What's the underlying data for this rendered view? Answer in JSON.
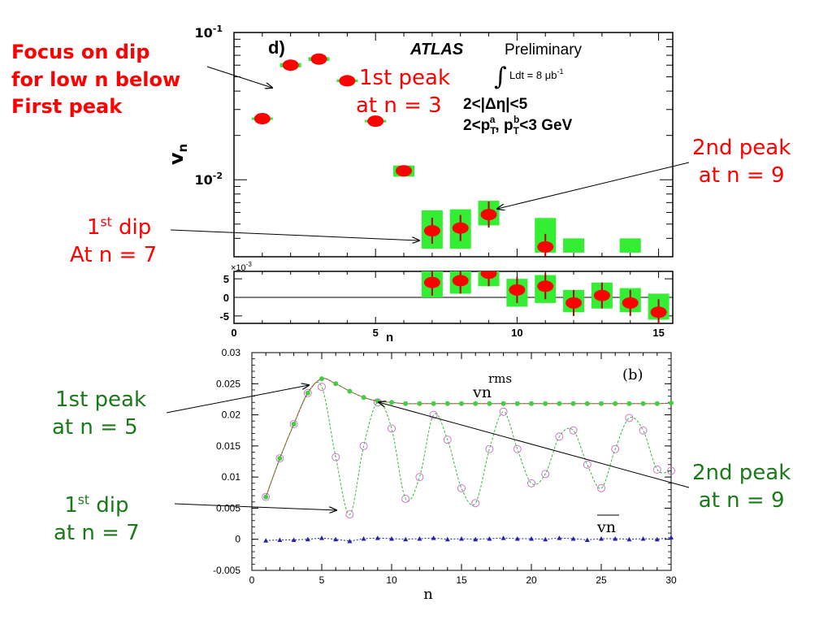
{
  "colors": {
    "atlas_marker": "#ff0000",
    "atlas_syst_box": "#33ee33",
    "annot_red": "#ff0000",
    "annot_green": "#1a7a1a",
    "rms_curve": "#b03030",
    "rms_points": "#44cc44",
    "vn_curve": "#33bb33",
    "vn_points": "#cc66cc",
    "vbar_points": "#2222aa"
  },
  "annotations": {
    "focus": [
      "Focus on dip",
      "for low n below",
      "First peak"
    ],
    "top_peak1": [
      "1st peak",
      "at  n = 3"
    ],
    "top_peak2": [
      "2nd peak",
      "at  n = 9"
    ],
    "top_dip": {
      "line1_main": "1",
      "line1_sup": "st",
      "line1_rest": " dip",
      "line2": "At n = 7"
    },
    "bot_peak1": [
      "1st peak",
      "at  n = 5"
    ],
    "bot_dip": {
      "line1_main": "1",
      "line1_sup": "st",
      "line1_rest": " dip",
      "line2": "at  n = 7"
    },
    "bot_peak2": [
      "2nd peak",
      "at  n = 9"
    ]
  },
  "chart_data": [
    {
      "type": "scatter",
      "panel": "d)",
      "ylabel": "vn",
      "yscale": "log",
      "ylim": [
        0.003,
        0.1
      ],
      "xlim": [
        0,
        15.5
      ],
      "yticks": [
        "10-1",
        "10-2"
      ],
      "texts": {
        "experiment": "ATLAS",
        "status": "Preliminary",
        "lumi": "Ldt = 8 μb-1",
        "cut1": "2<|Δη|<5",
        "cut2": "2<pTa, pTb<3 GeV"
      },
      "x": [
        1,
        2,
        3,
        4,
        5,
        6,
        7,
        8,
        9,
        10,
        11,
        12,
        13,
        14,
        15
      ],
      "y": [
        0.026,
        0.06,
        0.066,
        0.047,
        0.025,
        0.0115,
        0.0045,
        0.0047,
        0.0058,
        null,
        0.0035,
        null,
        null,
        null,
        null
      ],
      "syst_low": [
        0.0255,
        0.058,
        0.064,
        0.046,
        0.0245,
        0.0105,
        0.0034,
        0.0034,
        0.0049,
        null,
        0.0032,
        0.0032,
        null,
        0.0032,
        null
      ],
      "syst_high": [
        0.0265,
        0.062,
        0.068,
        0.048,
        0.0255,
        0.0125,
        0.0062,
        0.0063,
        0.0072,
        null,
        0.0055,
        0.004,
        null,
        0.004,
        null
      ]
    },
    {
      "type": "scatter",
      "panel": "difference",
      "xlabel": "n",
      "ylabel_scale": "×10-3",
      "xlim": [
        0,
        15.5
      ],
      "ylim": [
        -7,
        7
      ],
      "xticks": [
        0,
        5,
        10,
        15
      ],
      "yticks": [
        -5,
        0,
        5
      ],
      "x": [
        7,
        8,
        9,
        10,
        11,
        12,
        13,
        14,
        15
      ],
      "y": [
        4,
        4.5,
        6.5,
        2,
        3,
        -1.5,
        0.5,
        -1.5,
        -4
      ],
      "syst_low": [
        0,
        1,
        3,
        -2.5,
        -1.5,
        -4,
        -3,
        -4,
        -6
      ],
      "syst_high": [
        7,
        7,
        8,
        5,
        6,
        2,
        4,
        2.5,
        1
      ]
    },
    {
      "type": "line",
      "panel": "(b)",
      "xlabel": "n",
      "xlim": [
        0,
        30
      ],
      "ylim": [
        -0.005,
        0.03
      ],
      "xticks": [
        0,
        5,
        10,
        15,
        20,
        25,
        30
      ],
      "yticks": [
        "-0.005",
        "0",
        "0.005",
        "0.01",
        "0.015",
        "0.02",
        "0.025",
        "0.03"
      ],
      "series": [
        {
          "name": "vn rms",
          "x": [
            1,
            2,
            3,
            4,
            5,
            6,
            7,
            8,
            9,
            10,
            11,
            12,
            13,
            14,
            15,
            16,
            17,
            18,
            19,
            20,
            21,
            22,
            23,
            24,
            25,
            26,
            27,
            28,
            29,
            30
          ],
          "y": [
            0.0068,
            0.013,
            0.0185,
            0.0235,
            0.0258,
            0.025,
            0.0238,
            0.0228,
            0.0222,
            0.022,
            0.0218,
            0.0218,
            0.0218,
            0.0218,
            0.0218,
            0.0218,
            0.0218,
            0.0218,
            0.0218,
            0.0218,
            0.0218,
            0.0218,
            0.0218,
            0.0218,
            0.0218,
            0.0218,
            0.0218,
            0.0218,
            0.0218,
            0.0219
          ]
        },
        {
          "name": "vn",
          "x": [
            1,
            2,
            3,
            4,
            5,
            6,
            7,
            8,
            9,
            10,
            11,
            12,
            13,
            14,
            15,
            16,
            17,
            18,
            19,
            20,
            21,
            22,
            23,
            24,
            25,
            26,
            27,
            28,
            29,
            30
          ],
          "y": [
            0.0068,
            0.013,
            0.0185,
            0.0235,
            0.0245,
            0.0132,
            0.004,
            0.015,
            0.022,
            0.0178,
            0.0065,
            0.01,
            0.02,
            0.016,
            0.0082,
            0.0058,
            0.0145,
            0.0205,
            0.0145,
            0.009,
            0.0105,
            0.0165,
            0.0175,
            0.012,
            0.0082,
            0.0145,
            0.0195,
            0.0175,
            0.0112,
            0.011
          ]
        },
        {
          "name": "v̄n",
          "x": [
            1,
            2,
            3,
            4,
            5,
            6,
            7,
            8,
            9,
            10,
            11,
            12,
            13,
            14,
            15,
            16,
            17,
            18,
            19,
            20,
            21,
            22,
            23,
            24,
            25,
            26,
            27,
            28,
            29,
            30
          ],
          "y": [
            -0.0002,
            -0.0001,
            -0.0001,
            0.0,
            0.0002,
            0.0,
            -0.0003,
            0.0001,
            0.0002,
            0.0001,
            0.0,
            0.0001,
            0.0002,
            0.0,
            0.0001,
            0.0,
            0.0001,
            0.0002,
            0.0001,
            0.0001,
            0.0,
            0.0002,
            0.0001,
            -0.0001,
            0.0001,
            0.0001,
            0.0,
            0.0001,
            0.0,
            0.0003
          ]
        }
      ]
    }
  ]
}
